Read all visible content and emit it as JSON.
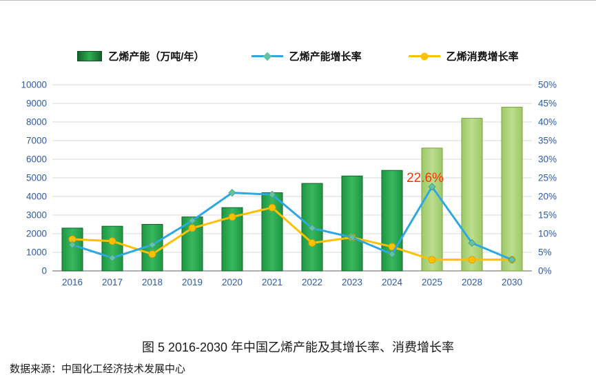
{
  "page": {
    "title": "图 5 2016-2030 年中国乙烯产能及其增长率、消费增长率",
    "source": "数据来源：中国化工经济技术发展中心"
  },
  "legend": [
    {
      "label": "乙烯产能（万吨/年）",
      "type": "bar",
      "color": "#1E9641"
    },
    {
      "label": "乙烯产能增长率",
      "type": "line-diamond",
      "color": "#2EA8E0"
    },
    {
      "label": "乙烯消费增长率",
      "type": "line-circle",
      "color": "#FFC000"
    }
  ],
  "colors": {
    "bar_actual": "#1E9641",
    "bar_actual_light": "#37B85E",
    "bar_actual_edge": "#10642A",
    "bar_forecast": "#9CC966",
    "bar_forecast_light": "#BCDD8F",
    "bar_forecast_edge": "#7EA13F",
    "line_capacity": "#2EA8E0",
    "line_consumption": "#FFC000",
    "marker_diamond": "#66C2A4",
    "marker_diamond_edge": "#3C9E77",
    "marker_circle": "#FFC000",
    "marker_circle_edge": "#D99E00",
    "axis_label": "#2E5AA8",
    "grid": "#D9D9D9",
    "axis_line": "#808080",
    "annotation": "#FF3300"
  },
  "chart_data": {
    "type": "bar",
    "subtype": "bar+line combo, dual axis",
    "categories": [
      "2016",
      "2017",
      "2018",
      "2019",
      "2020",
      "2021",
      "2022",
      "2023",
      "2024",
      "2025",
      "2028",
      "2030"
    ],
    "series": [
      {
        "name": "乙烯产能（万吨/年）",
        "type": "bar",
        "axis": "left",
        "unit": "万吨/年",
        "values": [
          2300,
          2400,
          2500,
          2900,
          3400,
          4200,
          4700,
          5100,
          5400,
          6600,
          8200,
          8800
        ]
      },
      {
        "name": "乙烯产能增长率",
        "type": "line",
        "axis": "right",
        "unit": "%",
        "values": [
          7,
          3.5,
          7,
          13.5,
          21,
          20.5,
          11.5,
          9,
          4.5,
          22.6,
          7.5,
          3
        ]
      },
      {
        "name": "乙烯消费增长率",
        "type": "line",
        "axis": "right",
        "unit": "%",
        "values": [
          8.5,
          8,
          4.5,
          11.5,
          14.5,
          17,
          7.5,
          9,
          6.5,
          3,
          3,
          3
        ]
      }
    ],
    "forecast_from_index": 9,
    "left_axis": {
      "min": 0,
      "max": 10000,
      "step": 1000,
      "ticks": [
        "0",
        "1000",
        "2000",
        "3000",
        "4000",
        "5000",
        "6000",
        "7000",
        "8000",
        "9000",
        "10000"
      ]
    },
    "right_axis": {
      "min": 0,
      "max": 50,
      "step": 5,
      "ticks": [
        "0%",
        "5%",
        "10%",
        "15%",
        "20%",
        "25%",
        "30%",
        "35%",
        "40%",
        "45%",
        "50%"
      ]
    },
    "annotation": {
      "text": "22.6%",
      "category": "2025",
      "category_index": 9,
      "value": 22.6
    },
    "grid": true,
    "legend_position": "top"
  }
}
